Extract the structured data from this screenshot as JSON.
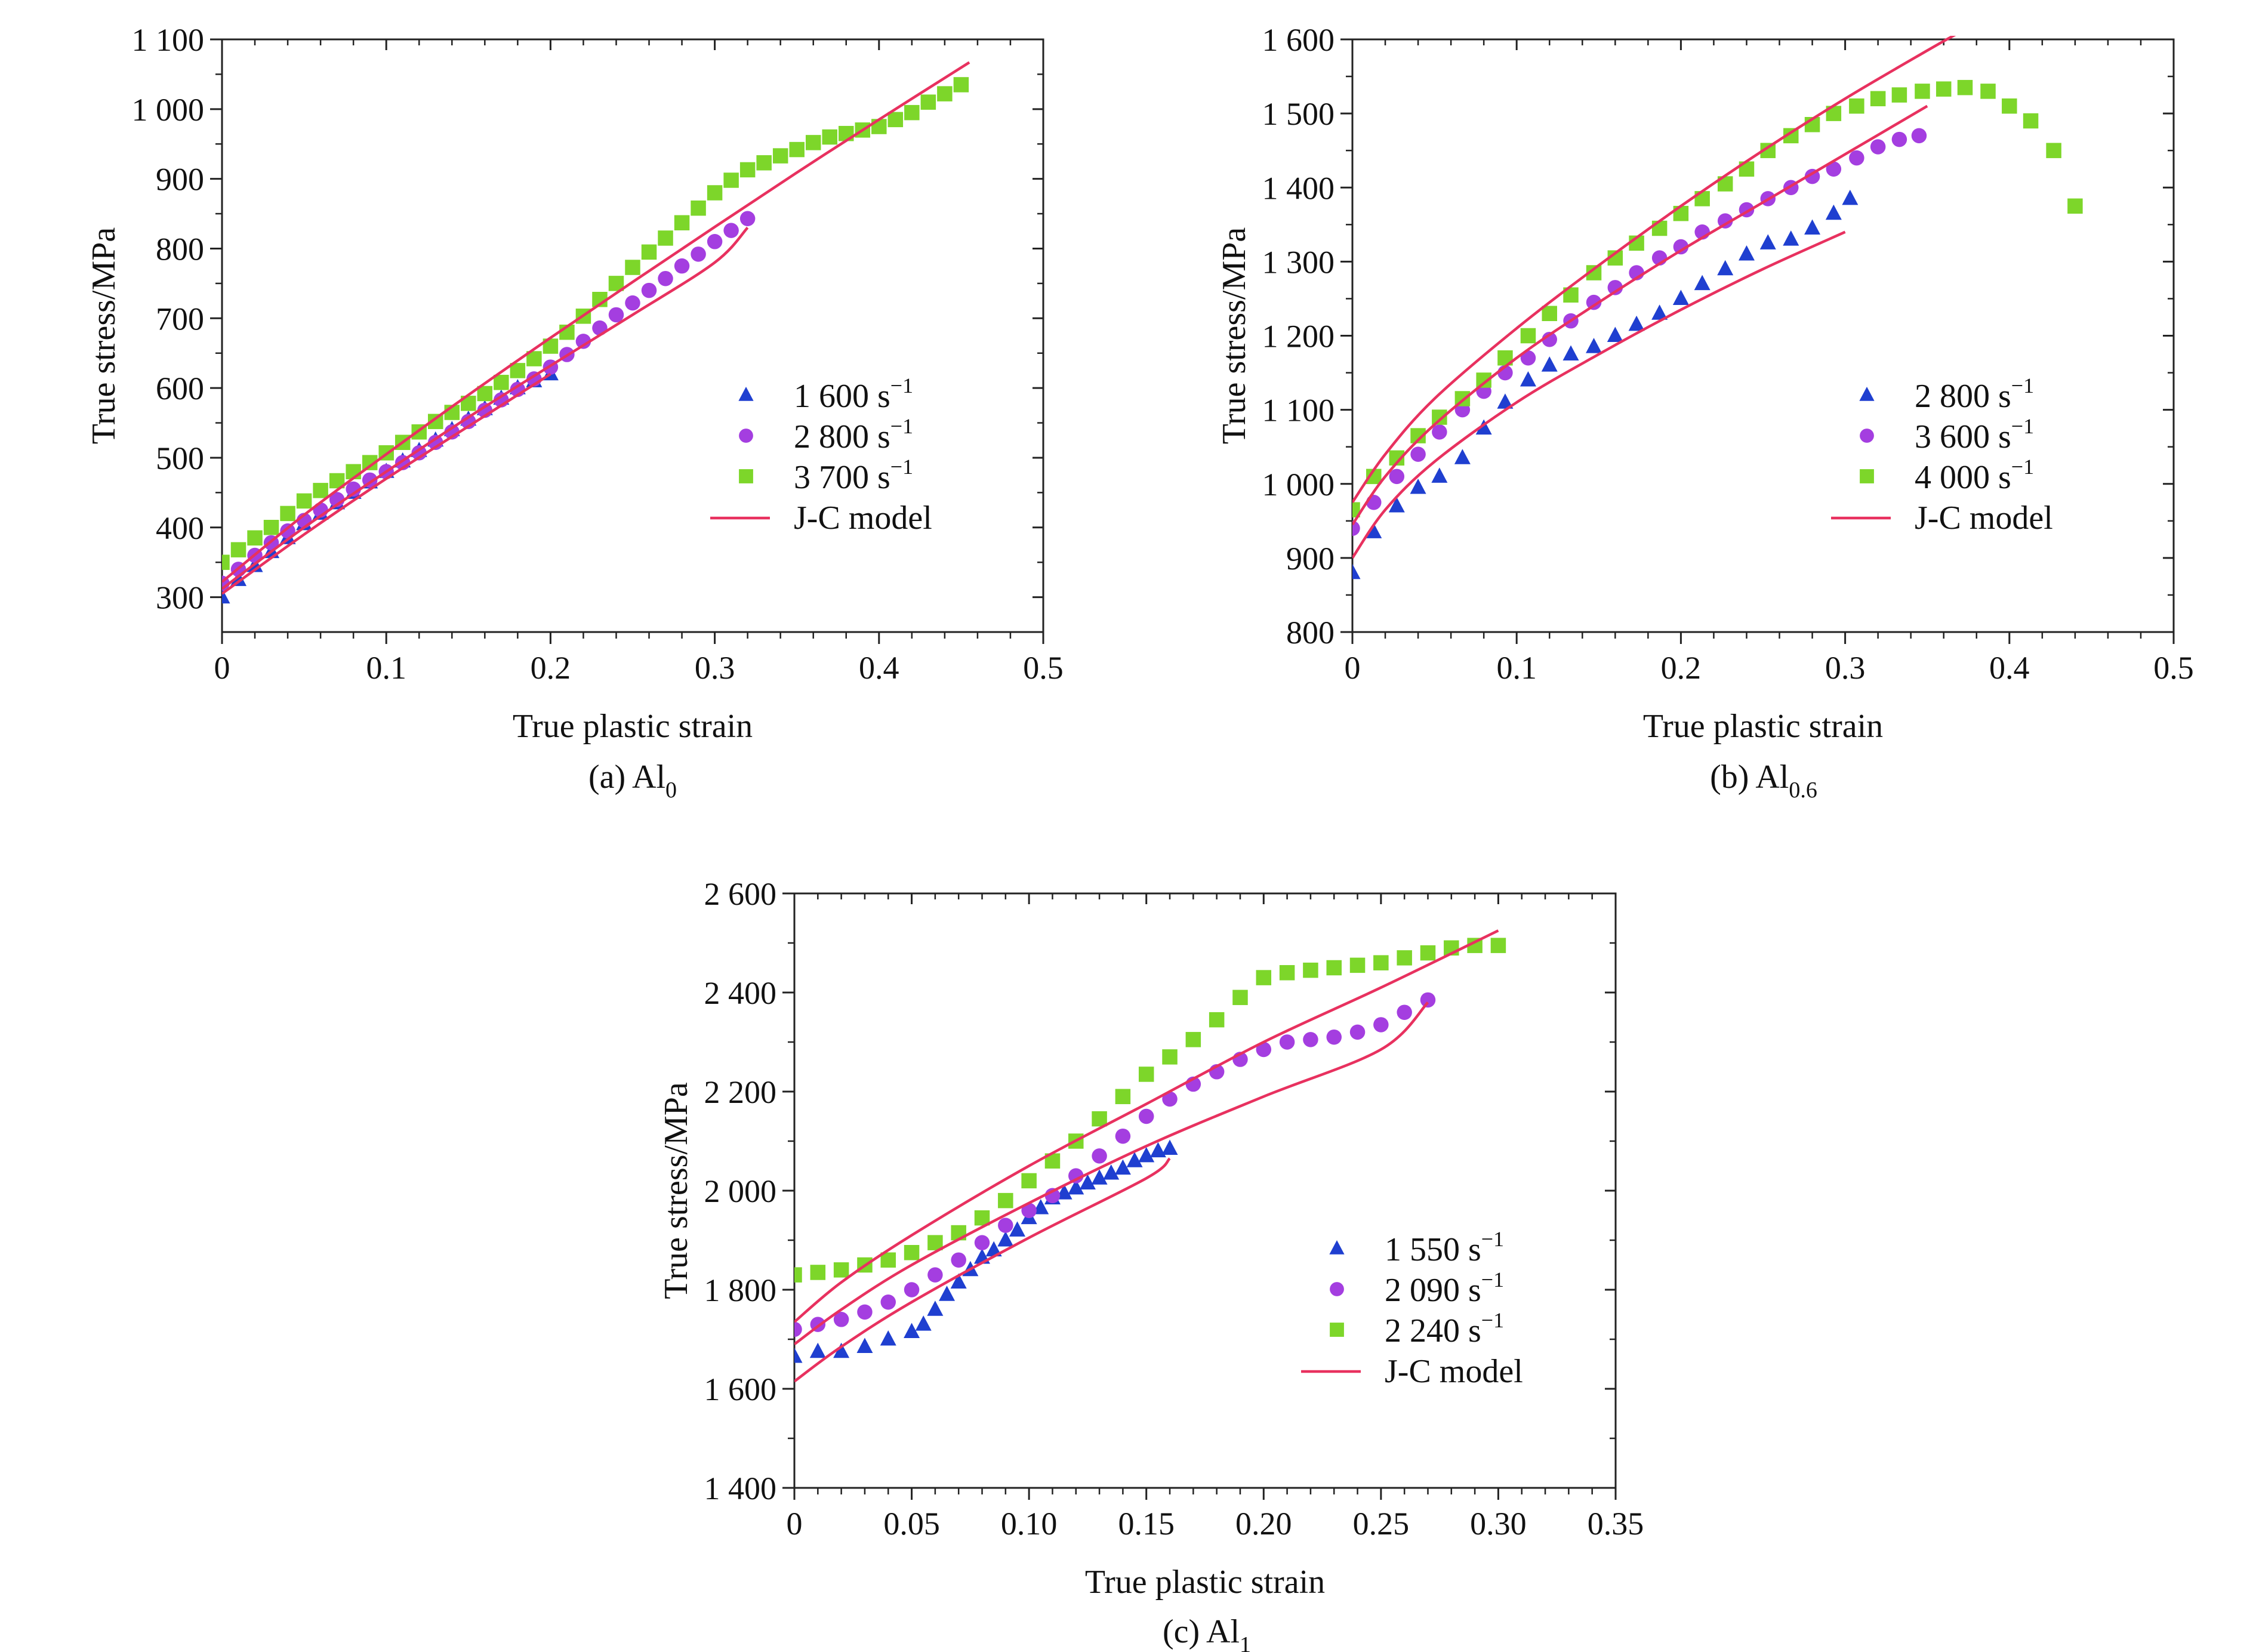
{
  "colors": {
    "series_triangle": "#1f3fd0",
    "series_circle": "#a43ee0",
    "series_square": "#7dd62a",
    "model": "#e8315f",
    "axis": "#222222"
  },
  "chart_data": [
    {
      "type": "scatter",
      "caption": "(a) Al",
      "caption_sub": "0",
      "xlabel": "True plastic strain",
      "ylabel": "True stress/MPa",
      "xlim": [
        0,
        0.5
      ],
      "ylim": [
        250,
        1100
      ],
      "xticks": [
        0,
        0.1,
        0.2,
        0.3,
        0.4,
        0.5
      ],
      "xtick_labels": [
        "0",
        "0.1",
        "0.2",
        "0.3",
        "0.4",
        "0.5"
      ],
      "yticks": [
        300,
        400,
        500,
        600,
        700,
        800,
        900,
        1000,
        1100
      ],
      "ytick_labels": [
        "300",
        "400",
        "500",
        "600",
        "700",
        "800",
        "900",
        "1 000",
        "1 100"
      ],
      "legend_position": "center-right",
      "series": [
        {
          "name": "1 600 s",
          "sup": "−1",
          "marker": "triangle",
          "x": [
            0.0,
            0.01,
            0.02,
            0.03,
            0.04,
            0.05,
            0.06,
            0.07,
            0.08,
            0.09,
            0.1,
            0.11,
            0.12,
            0.13,
            0.14,
            0.15,
            0.16,
            0.17,
            0.18,
            0.19,
            0.2
          ],
          "y": [
            300,
            325,
            345,
            365,
            385,
            405,
            420,
            435,
            450,
            465,
            480,
            495,
            510,
            525,
            540,
            555,
            570,
            585,
            600,
            610,
            620
          ]
        },
        {
          "name": "2 800 s",
          "sup": "−1",
          "marker": "circle",
          "x": [
            0.0,
            0.01,
            0.02,
            0.03,
            0.04,
            0.05,
            0.06,
            0.07,
            0.08,
            0.09,
            0.1,
            0.11,
            0.12,
            0.13,
            0.14,
            0.15,
            0.16,
            0.17,
            0.18,
            0.19,
            0.2,
            0.21,
            0.22,
            0.23,
            0.24,
            0.25,
            0.26,
            0.27,
            0.28,
            0.29,
            0.3,
            0.31,
            0.32
          ],
          "y": [
            320,
            340,
            360,
            378,
            395,
            410,
            425,
            440,
            455,
            468,
            480,
            493,
            507,
            522,
            537,
            552,
            568,
            583,
            598,
            613,
            630,
            648,
            667,
            686,
            705,
            722,
            740,
            757,
            775,
            792,
            810,
            826,
            843
          ]
        },
        {
          "name": "3 700 s",
          "sup": "−1",
          "marker": "square",
          "x": [
            0.0,
            0.01,
            0.02,
            0.03,
            0.04,
            0.05,
            0.06,
            0.07,
            0.08,
            0.09,
            0.1,
            0.11,
            0.12,
            0.13,
            0.14,
            0.15,
            0.16,
            0.17,
            0.18,
            0.19,
            0.2,
            0.21,
            0.22,
            0.23,
            0.24,
            0.25,
            0.26,
            0.27,
            0.28,
            0.29,
            0.3,
            0.31,
            0.32,
            0.33,
            0.34,
            0.35,
            0.36,
            0.37,
            0.38,
            0.39,
            0.4,
            0.41,
            0.42,
            0.43,
            0.44,
            0.45
          ],
          "y": [
            350,
            368,
            385,
            400,
            420,
            438,
            453,
            467,
            480,
            493,
            507,
            522,
            537,
            552,
            565,
            578,
            592,
            608,
            625,
            642,
            660,
            680,
            703,
            727,
            750,
            773,
            795,
            815,
            837,
            858,
            880,
            898,
            913,
            923,
            933,
            942,
            952,
            960,
            965,
            970,
            975,
            985,
            995,
            1010,
            1022,
            1035
          ]
        },
        {
          "name": "J-C model",
          "marker": "line",
          "curves": [
            {
              "x": [
                0.0,
                0.05,
                0.1,
                0.15,
                0.2
              ],
              "y": [
                305,
                390,
                470,
                545,
                620
              ]
            },
            {
              "x": [
                0.0,
                0.05,
                0.1,
                0.15,
                0.2,
                0.25,
                0.3,
                0.32
              ],
              "y": [
                312,
                400,
                480,
                558,
                632,
                705,
                780,
                830
              ]
            },
            {
              "x": [
                0.0,
                0.05,
                0.1,
                0.15,
                0.2,
                0.25,
                0.3,
                0.35,
                0.4,
                0.455
              ],
              "y": [
                322,
                418,
                505,
                590,
                672,
                752,
                831,
                909,
                985,
                1067
              ]
            }
          ]
        }
      ]
    },
    {
      "type": "scatter",
      "caption": "(b) Al",
      "caption_sub": "0.6",
      "xlabel": "True plastic strain",
      "ylabel": "True stress/MPa",
      "xlim": [
        0,
        0.5
      ],
      "ylim": [
        800,
        1600
      ],
      "xticks": [
        0,
        0.1,
        0.2,
        0.3,
        0.4,
        0.5
      ],
      "xtick_labels": [
        "0",
        "0.1",
        "0.2",
        "0.3",
        "0.4",
        "0.5"
      ],
      "yticks": [
        800,
        900,
        1000,
        1100,
        1200,
        1300,
        1400,
        1500,
        1600
      ],
      "ytick_labels": [
        "800",
        "900",
        "1 000",
        "1 100",
        "1 200",
        "1 300",
        "1 400",
        "1 500",
        "1 600"
      ],
      "legend_position": "center-right",
      "series": [
        {
          "name": "2 800 s",
          "sup": "−1",
          "marker": "triangle",
          "x": [
            0.0,
            0.013,
            0.027,
            0.04,
            0.053,
            0.067,
            0.08,
            0.093,
            0.107,
            0.12,
            0.133,
            0.147,
            0.16,
            0.173,
            0.187,
            0.2,
            0.213,
            0.227,
            0.24,
            0.253,
            0.267,
            0.28,
            0.293,
            0.303
          ],
          "y": [
            880,
            935,
            970,
            995,
            1010,
            1035,
            1075,
            1110,
            1140,
            1160,
            1175,
            1185,
            1200,
            1215,
            1230,
            1250,
            1270,
            1290,
            1310,
            1325,
            1330,
            1345,
            1365,
            1385
          ]
        },
        {
          "name": "3 600 s",
          "sup": "−1",
          "marker": "circle",
          "x": [
            0.0,
            0.013,
            0.027,
            0.04,
            0.053,
            0.067,
            0.08,
            0.093,
            0.107,
            0.12,
            0.133,
            0.147,
            0.16,
            0.173,
            0.187,
            0.2,
            0.213,
            0.227,
            0.24,
            0.253,
            0.267,
            0.28,
            0.293,
            0.307,
            0.32,
            0.333,
            0.345
          ],
          "y": [
            940,
            975,
            1010,
            1040,
            1070,
            1100,
            1125,
            1150,
            1170,
            1195,
            1220,
            1245,
            1265,
            1285,
            1305,
            1320,
            1340,
            1355,
            1370,
            1385,
            1400,
            1415,
            1425,
            1440,
            1455,
            1465,
            1470
          ]
        },
        {
          "name": "4 000 s",
          "sup": "−1",
          "marker": "square",
          "x": [
            0.0,
            0.013,
            0.027,
            0.04,
            0.053,
            0.067,
            0.08,
            0.093,
            0.107,
            0.12,
            0.133,
            0.147,
            0.16,
            0.173,
            0.187,
            0.2,
            0.213,
            0.227,
            0.24,
            0.253,
            0.267,
            0.28,
            0.293,
            0.307,
            0.32,
            0.333,
            0.347,
            0.36,
            0.373,
            0.387,
            0.4,
            0.413,
            0.427,
            0.44
          ],
          "y": [
            965,
            1010,
            1035,
            1065,
            1090,
            1115,
            1140,
            1170,
            1200,
            1230,
            1255,
            1285,
            1305,
            1325,
            1345,
            1365,
            1385,
            1405,
            1425,
            1450,
            1470,
            1485,
            1500,
            1510,
            1520,
            1525,
            1530,
            1533,
            1535,
            1530,
            1510,
            1490,
            1450,
            1375
          ]
        },
        {
          "name": "J-C model",
          "marker": "line",
          "curves": [
            {
              "x": [
                0.0,
                0.02,
                0.05,
                0.1,
                0.15,
                0.2,
                0.25,
                0.3
              ],
              "y": [
                900,
                965,
                1030,
                1110,
                1175,
                1235,
                1290,
                1340
              ]
            },
            {
              "x": [
                0.0,
                0.02,
                0.05,
                0.1,
                0.15,
                0.2,
                0.25,
                0.3,
                0.35
              ],
              "y": [
                945,
                1010,
                1080,
                1170,
                1245,
                1315,
                1380,
                1445,
                1510
              ]
            },
            {
              "x": [
                0.0,
                0.02,
                0.05,
                0.1,
                0.15,
                0.2,
                0.25,
                0.3,
                0.35,
                0.37
              ],
              "y": [
                975,
                1040,
                1115,
                1210,
                1295,
                1375,
                1450,
                1520,
                1585,
                1610
              ]
            }
          ]
        }
      ]
    },
    {
      "type": "scatter",
      "caption": "(c) Al",
      "caption_sub": "1",
      "xlabel": "True plastic strain",
      "ylabel": "True stress/MPa",
      "xlim": [
        0,
        0.35
      ],
      "ylim": [
        1400,
        2600
      ],
      "xticks": [
        0,
        0.05,
        0.1,
        0.15,
        0.2,
        0.25,
        0.3,
        0.35
      ],
      "xtick_labels": [
        "0",
        "0.05",
        "0.10",
        "0.15",
        "0.20",
        "0.25",
        "0.30",
        "0.35"
      ],
      "yticks": [
        1400,
        1600,
        1800,
        2000,
        2200,
        2400,
        2600
      ],
      "ytick_labels": [
        "1 400",
        "1 600",
        "1 800",
        "2 000",
        "2 200",
        "2 400",
        "2 600"
      ],
      "legend_position": "center-right",
      "series": [
        {
          "name": "1 550 s",
          "sup": "−1",
          "marker": "triangle",
          "x": [
            0.0,
            0.01,
            0.02,
            0.03,
            0.04,
            0.05,
            0.055,
            0.06,
            0.065,
            0.07,
            0.075,
            0.08,
            0.085,
            0.09,
            0.095,
            0.1,
            0.105,
            0.11,
            0.115,
            0.12,
            0.125,
            0.13,
            0.135,
            0.14,
            0.145,
            0.15,
            0.155,
            0.16
          ],
          "y": [
            1665,
            1675,
            1675,
            1685,
            1700,
            1715,
            1730,
            1760,
            1790,
            1815,
            1840,
            1865,
            1880,
            1900,
            1920,
            1945,
            1965,
            1985,
            1995,
            2005,
            2015,
            2025,
            2035,
            2045,
            2060,
            2070,
            2080,
            2085
          ]
        },
        {
          "name": "2 090 s",
          "sup": "−1",
          "marker": "circle",
          "x": [
            0.0,
            0.01,
            0.02,
            0.03,
            0.04,
            0.05,
            0.06,
            0.07,
            0.08,
            0.09,
            0.1,
            0.11,
            0.12,
            0.13,
            0.14,
            0.15,
            0.16,
            0.17,
            0.18,
            0.19,
            0.2,
            0.21,
            0.22,
            0.23,
            0.24,
            0.25,
            0.26,
            0.27
          ],
          "y": [
            1720,
            1730,
            1740,
            1755,
            1775,
            1800,
            1830,
            1860,
            1895,
            1930,
            1960,
            1990,
            2030,
            2070,
            2110,
            2150,
            2185,
            2215,
            2240,
            2265,
            2285,
            2300,
            2305,
            2310,
            2320,
            2335,
            2360,
            2385
          ]
        },
        {
          "name": "2 240 s",
          "sup": "−1",
          "marker": "square",
          "x": [
            0.0,
            0.01,
            0.02,
            0.03,
            0.04,
            0.05,
            0.06,
            0.07,
            0.08,
            0.09,
            0.1,
            0.11,
            0.12,
            0.13,
            0.14,
            0.15,
            0.16,
            0.17,
            0.18,
            0.19,
            0.2,
            0.21,
            0.22,
            0.23,
            0.24,
            0.25,
            0.26,
            0.27,
            0.28,
            0.29,
            0.3
          ],
          "y": [
            1830,
            1835,
            1840,
            1850,
            1860,
            1875,
            1895,
            1915,
            1945,
            1980,
            2020,
            2060,
            2100,
            2145,
            2190,
            2235,
            2270,
            2305,
            2345,
            2390,
            2430,
            2440,
            2445,
            2450,
            2455,
            2460,
            2470,
            2480,
            2490,
            2495,
            2495
          ]
        },
        {
          "name": "J-C model",
          "marker": "line",
          "curves": [
            {
              "x": [
                0.0,
                0.02,
                0.05,
                0.1,
                0.15,
                0.16
              ],
              "y": [
                1615,
                1685,
                1775,
                1905,
                2025,
                2065
              ]
            },
            {
              "x": [
                0.0,
                0.02,
                0.05,
                0.1,
                0.15,
                0.2,
                0.25,
                0.27
              ],
              "y": [
                1690,
                1760,
                1850,
                1975,
                2090,
                2190,
                2285,
                2380
              ]
            },
            {
              "x": [
                0.0,
                0.02,
                0.05,
                0.1,
                0.15,
                0.2,
                0.25,
                0.3
              ],
              "y": [
                1735,
                1815,
                1910,
                2050,
                2175,
                2300,
                2410,
                2525
              ]
            }
          ]
        }
      ]
    }
  ]
}
